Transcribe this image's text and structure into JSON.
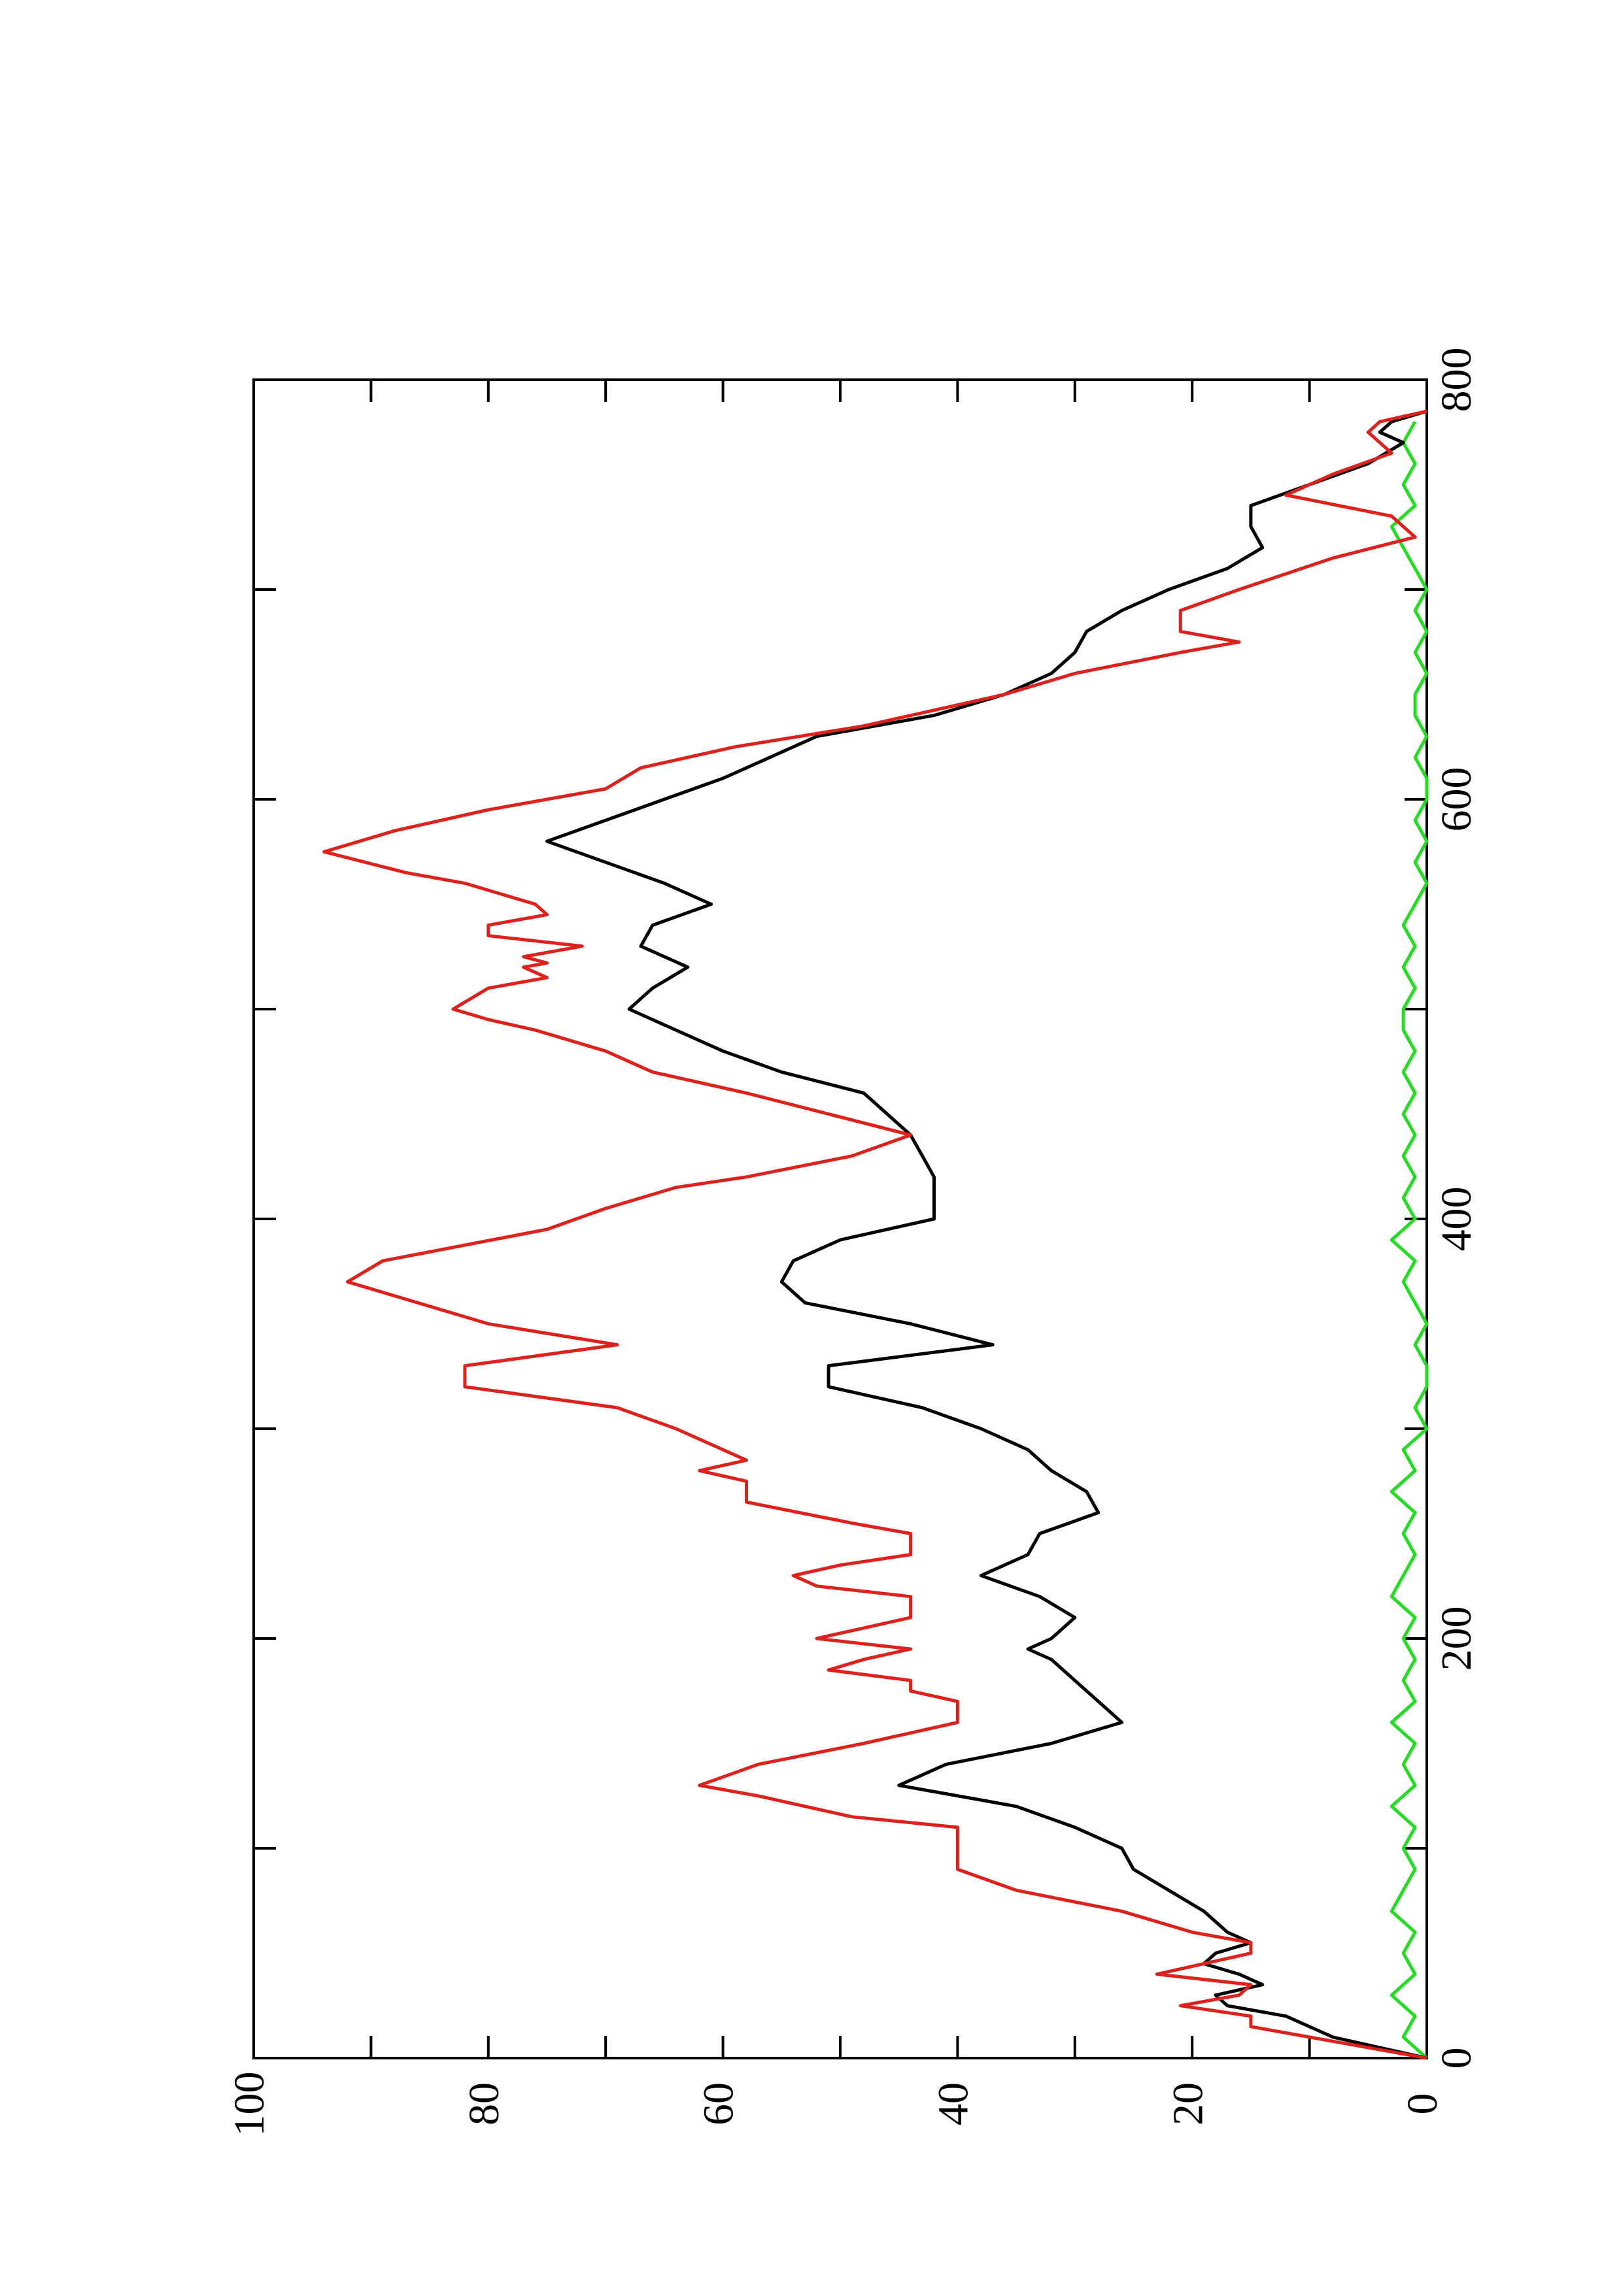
{
  "chart_data": {
    "type": "line",
    "xlim": [
      0,
      800
    ],
    "xticks": [
      0,
      200,
      400,
      600,
      800
    ],
    "minor_xticks": [
      100,
      300,
      500,
      700
    ],
    "ylim": [
      0,
      100
    ],
    "yticks": [
      0,
      20,
      40,
      60,
      80,
      100
    ],
    "minor_yticks": [
      10,
      30,
      50,
      70,
      90
    ],
    "rotated": true,
    "series": [
      {
        "color": "#000000",
        "x": [
          0,
          10,
          20,
          25,
          30,
          35,
          40,
          45,
          50,
          55,
          60,
          70,
          80,
          90,
          100,
          110,
          120,
          130,
          140,
          150,
          160,
          170,
          180,
          190,
          195,
          200,
          210,
          220,
          230,
          240,
          250,
          260,
          270,
          280,
          290,
          300,
          310,
          320,
          330,
          340,
          350,
          360,
          370,
          380,
          390,
          400,
          410,
          420,
          430,
          440,
          450,
          460,
          470,
          480,
          490,
          500,
          510,
          520,
          530,
          540,
          550,
          560,
          570,
          580,
          590,
          600,
          610,
          620,
          630,
          640,
          650,
          660,
          670,
          680,
          690,
          700,
          710,
          720,
          730,
          740,
          750,
          760,
          770,
          775,
          780,
          785
        ],
        "values": [
          0,
          8,
          12,
          17,
          18,
          14,
          16,
          19,
          18,
          15,
          17,
          19,
          22,
          25,
          26,
          30,
          35,
          45,
          41,
          32,
          26,
          28,
          30,
          32,
          34,
          32,
          30,
          33,
          38,
          34,
          33,
          28,
          29,
          32,
          34,
          38,
          43,
          51,
          51,
          37,
          44,
          53,
          55,
          54,
          50,
          42,
          42,
          42,
          43,
          44,
          46,
          48,
          55,
          60,
          64,
          68,
          66,
          63,
          67,
          66,
          61,
          65,
          70,
          75,
          70,
          65,
          60,
          56,
          52,
          42,
          36,
          32,
          30,
          29,
          26,
          22,
          17,
          14,
          15,
          15,
          10,
          5,
          2,
          4,
          3,
          0
        ]
      },
      {
        "color": "#e0201b",
        "x": [
          0,
          8,
          15,
          20,
          25,
          30,
          35,
          40,
          45,
          50,
          55,
          60,
          65,
          70,
          80,
          90,
          100,
          110,
          115,
          125,
          130,
          140,
          150,
          160,
          170,
          175,
          180,
          185,
          190,
          195,
          200,
          205,
          210,
          220,
          225,
          230,
          235,
          240,
          250,
          255,
          265,
          275,
          280,
          285,
          300,
          310,
          320,
          330,
          340,
          350,
          360,
          370,
          380,
          395,
          405,
          415,
          420,
          430,
          440,
          450,
          460,
          470,
          480,
          490,
          495,
          500,
          510,
          515,
          520,
          522,
          525,
          530,
          535,
          540,
          545,
          550,
          560,
          565,
          575,
          585,
          595,
          605,
          615,
          625,
          635,
          650,
          660,
          670,
          675,
          680,
          690,
          700,
          715,
          725,
          735,
          745,
          755,
          765,
          775,
          780,
          785
        ],
        "values": [
          0,
          8,
          15,
          15,
          21,
          16,
          15,
          23,
          19,
          15,
          15,
          20,
          23,
          26,
          35,
          40,
          40,
          40,
          49,
          57,
          62,
          57,
          48,
          40,
          40,
          44,
          44,
          51,
          48,
          44,
          52,
          48,
          44,
          44,
          52,
          54,
          50,
          44,
          44,
          49,
          58,
          58,
          62,
          58,
          64,
          69,
          82,
          82,
          69,
          80,
          86,
          92,
          89,
          75,
          70,
          64,
          58,
          49,
          44,
          51,
          58,
          66,
          70,
          76,
          80,
          83,
          80,
          75,
          77,
          75,
          77,
          72,
          80,
          80,
          75,
          76,
          82,
          87,
          94,
          88,
          80,
          70,
          67,
          59,
          48,
          36,
          30,
          21,
          16,
          21,
          21,
          16,
          8,
          1,
          3,
          12,
          8,
          3,
          5,
          4,
          0
        ]
      },
      {
        "color": "#22dd22",
        "x": [
          0,
          10,
          20,
          30,
          40,
          50,
          60,
          70,
          80,
          90,
          100,
          110,
          120,
          130,
          140,
          150,
          160,
          170,
          180,
          190,
          200,
          210,
          220,
          230,
          240,
          250,
          260,
          270,
          280,
          290,
          300,
          310,
          320,
          330,
          340,
          350,
          360,
          370,
          380,
          390,
          400,
          410,
          420,
          430,
          440,
          450,
          460,
          470,
          480,
          490,
          500,
          510,
          520,
          530,
          540,
          550,
          560,
          570,
          580,
          590,
          600,
          610,
          620,
          630,
          640,
          650,
          660,
          670,
          680,
          690,
          700,
          710,
          720,
          730,
          740,
          750,
          760,
          770,
          780
        ],
        "values": [
          0,
          2,
          1,
          3,
          1,
          2,
          1,
          3,
          2,
          1,
          2,
          1,
          3,
          1,
          2,
          1,
          3,
          1,
          2,
          1,
          2,
          1,
          3,
          2,
          1,
          2,
          1,
          3,
          1,
          2,
          0,
          1,
          0,
          0,
          1,
          0,
          1,
          2,
          1,
          3,
          1,
          2,
          1,
          2,
          1,
          2,
          1,
          2,
          1,
          2,
          2,
          1,
          2,
          1,
          2,
          1,
          0,
          1,
          0,
          1,
          0,
          0,
          1,
          0,
          1,
          1,
          0,
          1,
          0,
          1,
          0,
          1,
          2,
          3,
          1,
          2,
          1,
          2,
          1
        ]
      }
    ]
  }
}
